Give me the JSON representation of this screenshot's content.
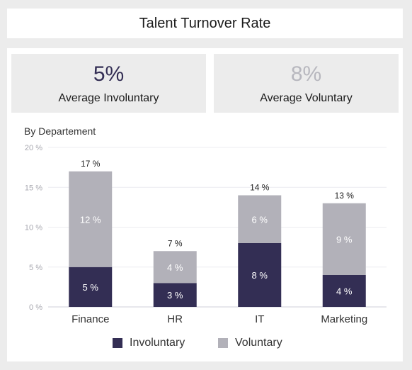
{
  "title": "Talent Turnover Rate",
  "kpis": {
    "involuntary": {
      "value": "5%",
      "label": "Average Involuntary"
    },
    "voluntary": {
      "value": "8%",
      "label": "Average Voluntary"
    }
  },
  "chart_subtitle": "By Departement",
  "colors": {
    "involuntary": "#332e54",
    "voluntary": "#b2b1b9"
  },
  "chart_data": {
    "type": "bar",
    "stacked": true,
    "categories": [
      "Finance",
      "HR",
      "IT",
      "Marketing"
    ],
    "series": [
      {
        "name": "Involuntary",
        "values": [
          5,
          3,
          8,
          4
        ],
        "labels": [
          "5 %",
          "3 %",
          "8 %",
          "4 %"
        ]
      },
      {
        "name": "Voluntary",
        "values": [
          12,
          4,
          6,
          9
        ],
        "labels": [
          "12 %",
          "4 %",
          "6 %",
          "9 %"
        ]
      }
    ],
    "totals": [
      17,
      7,
      14,
      13
    ],
    "total_labels": [
      "17 %",
      "7 %",
      "14 %",
      "13 %"
    ],
    "yticks": [
      "0 %",
      "5 %",
      "10 %",
      "15 %",
      "20 %"
    ],
    "ylim": [
      0,
      20
    ],
    "grid": true,
    "legend": "bottom"
  }
}
